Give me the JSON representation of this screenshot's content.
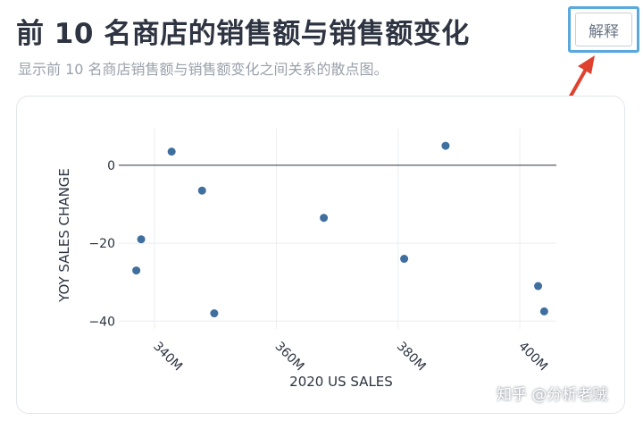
{
  "header": {
    "title": "前 10 名商店的销售额与销售额变化",
    "subtitle": "显示前 10 名商店销售额与销售额变化之间关系的散点图。",
    "explain_button_label": "解释"
  },
  "colors": {
    "point": "#3f6f9f",
    "explain_border": "#5aa8de",
    "annotation_arrow": "#e0412f"
  },
  "watermark": "知乎 @分析老贼",
  "chart_data": {
    "type": "scatter",
    "title": "",
    "xlabel": "2020 US SALES",
    "ylabel": "YOY SALES CHANGE",
    "x_unit": "M",
    "xlim": [
      335,
      406
    ],
    "ylim": [
      -42,
      8
    ],
    "x_ticks": [
      340,
      360,
      380,
      400
    ],
    "x_tick_labels": [
      "340M",
      "360M",
      "380M",
      "400M"
    ],
    "y_ticks": [
      0,
      -20,
      -40
    ],
    "y_tick_labels": [
      "0",
      "−20",
      "−40"
    ],
    "grid": true,
    "zero_line": true,
    "series": [
      {
        "points": [
          {
            "x": 337.0,
            "y": -27
          },
          {
            "x": 337.8,
            "y": -19
          },
          {
            "x": 342.8,
            "y": 3.5
          },
          {
            "x": 347.8,
            "y": -6.5
          },
          {
            "x": 349.8,
            "y": -38
          },
          {
            "x": 367.8,
            "y": -13.5
          },
          {
            "x": 381.0,
            "y": -24
          },
          {
            "x": 387.8,
            "y": 5
          },
          {
            "x": 403.0,
            "y": -31
          },
          {
            "x": 404.0,
            "y": -37.5
          }
        ]
      }
    ]
  }
}
